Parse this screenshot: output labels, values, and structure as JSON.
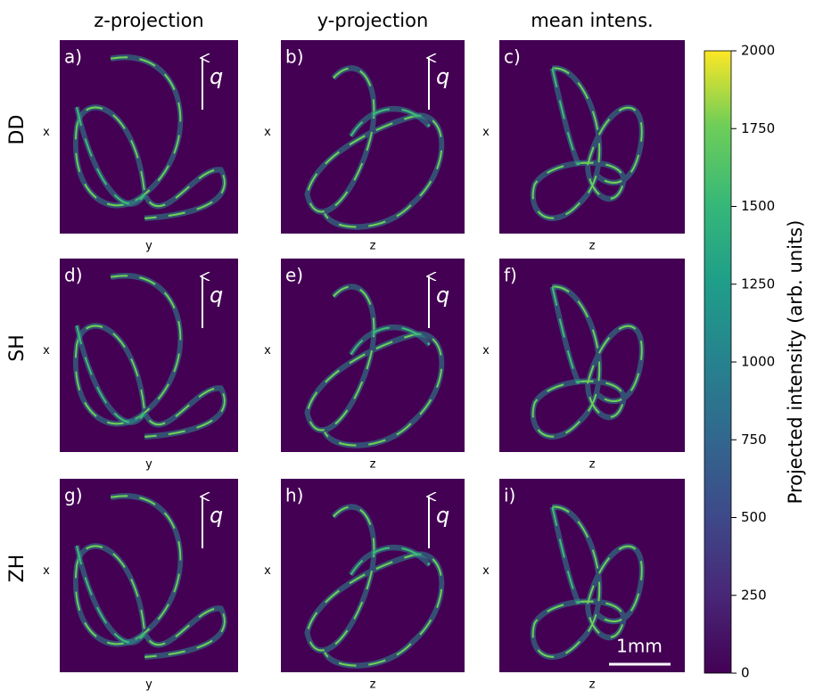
{
  "columns": [
    "z-projection",
    "y-projection",
    "mean intens."
  ],
  "rows": [
    "DD",
    "SH",
    "ZH"
  ],
  "panels": [
    {
      "label": "a)",
      "xlabel": "y",
      "ylabel": "x",
      "q": "q"
    },
    {
      "label": "b)",
      "xlabel": "z",
      "ylabel": "x",
      "q": "q"
    },
    {
      "label": "c)",
      "xlabel": "z",
      "ylabel": "x"
    },
    {
      "label": "d)",
      "xlabel": "y",
      "ylabel": "x",
      "q": "q"
    },
    {
      "label": "e)",
      "xlabel": "z",
      "ylabel": "x",
      "q": "q"
    },
    {
      "label": "f)",
      "xlabel": "z",
      "ylabel": "x"
    },
    {
      "label": "g)",
      "xlabel": "y",
      "ylabel": "x",
      "q": "q"
    },
    {
      "label": "h)",
      "xlabel": "z",
      "ylabel": "x",
      "q": "q"
    },
    {
      "label": "i)",
      "xlabel": "z",
      "ylabel": "x"
    }
  ],
  "colorbar": {
    "label": "Projected intensity (arb. units)",
    "lim": [
      0,
      2000
    ],
    "ticks": [
      0,
      250,
      500,
      750,
      1000,
      1250,
      1500,
      1750,
      2000
    ]
  },
  "scale_bar": "1mm"
}
